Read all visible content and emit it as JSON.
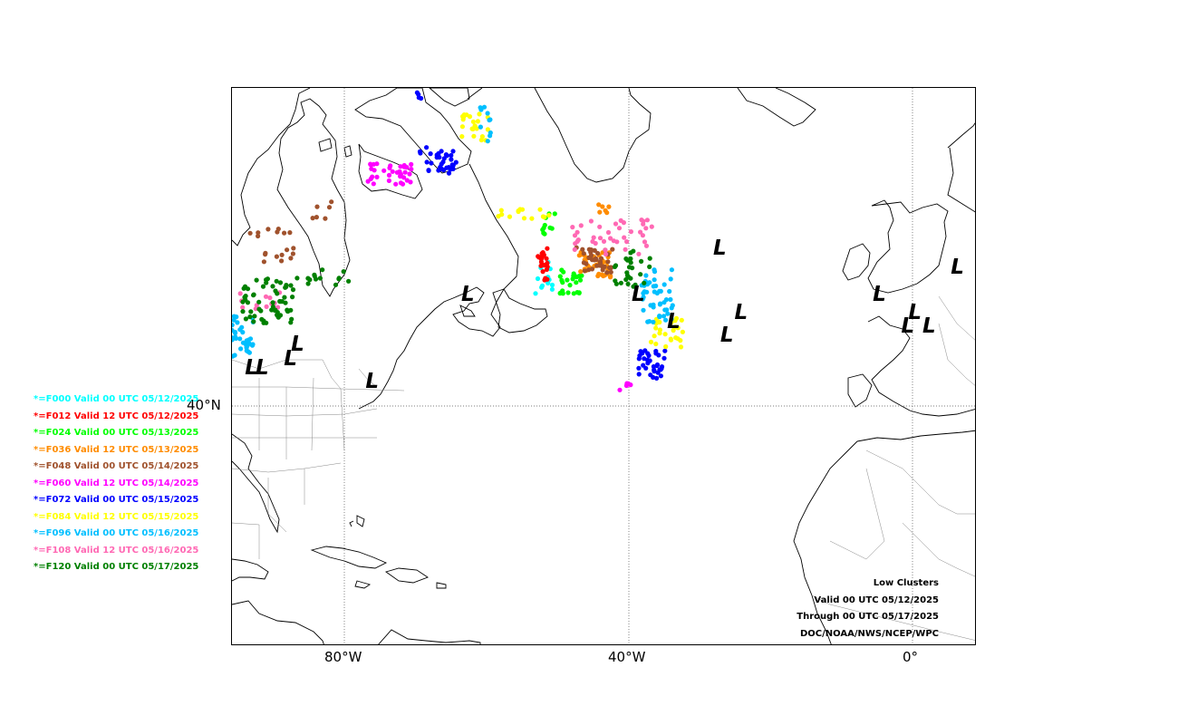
{
  "axes": {
    "x_ticks": [
      "80°W",
      "40°W",
      "0°"
    ],
    "y_ticks": [
      "40°N"
    ]
  },
  "legend": [
    {
      "label": "*=F000 Valid 00 UTC 05/12/2025",
      "color": "#00ffff"
    },
    {
      "label": "*=F012 Valid 12 UTC 05/12/2025",
      "color": "#ff0000"
    },
    {
      "label": "*=F024 Valid 00 UTC 05/13/2025",
      "color": "#00ff00"
    },
    {
      "label": "*=F036 Valid 12 UTC 05/13/2025",
      "color": "#ff8c00"
    },
    {
      "label": "*=F048 Valid 00 UTC 05/14/2025",
      "color": "#a0522d"
    },
    {
      "label": "*=F060 Valid 12 UTC 05/14/2025",
      "color": "#ff00ff"
    },
    {
      "label": "*=F072 Valid 00 UTC 05/15/2025",
      "color": "#0000ff"
    },
    {
      "label": "*=F084 Valid 12 UTC 05/15/2025",
      "color": "#ffff00"
    },
    {
      "label": "*=F096 Valid 00 UTC 05/16/2025",
      "color": "#00bfff"
    },
    {
      "label": "*=F108 Valid 12 UTC 05/16/2025",
      "color": "#ff69b4"
    },
    {
      "label": "*=F120 Valid 00 UTC 05/17/2025",
      "color": "#008000"
    }
  ],
  "credits": [
    "Low Clusters",
    "Valid 00 UTC 05/12/2025",
    "Through 00 UTC 05/17/2025",
    "DOC/NOAA/NWS/NCEP/WPC"
  ],
  "low_symbol": "L",
  "low_centers": [
    {
      "lon": -27,
      "lat": 57
    },
    {
      "lon": 6.5,
      "lat": 55
    },
    {
      "lon": -4.5,
      "lat": 52
    },
    {
      "lon": 0.5,
      "lat": 50
    },
    {
      "lon": -0.5,
      "lat": 48.5
    },
    {
      "lon": 2.5,
      "lat": 48.5
    },
    {
      "lon": -24,
      "lat": 50
    },
    {
      "lon": -26,
      "lat": 47.5
    },
    {
      "lon": -33.5,
      "lat": 49
    },
    {
      "lon": -38.5,
      "lat": 52
    },
    {
      "lon": -62.5,
      "lat": 52
    },
    {
      "lon": -86.5,
      "lat": 46.5
    },
    {
      "lon": -87.5,
      "lat": 45
    },
    {
      "lon": -91.5,
      "lat": 44
    },
    {
      "lon": -93,
      "lat": 44
    },
    {
      "lon": -76,
      "lat": 42.5
    }
  ]
}
